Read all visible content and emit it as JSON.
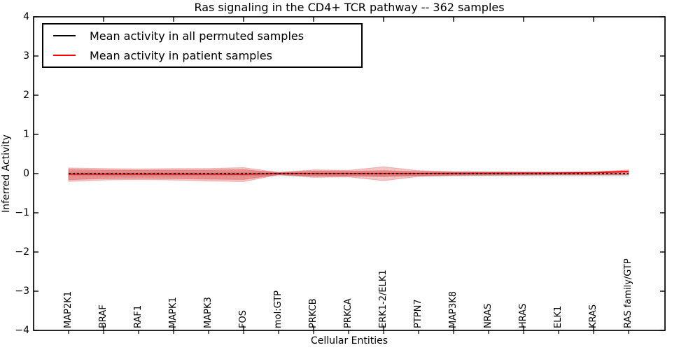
{
  "figure": {
    "background": "#ffffff"
  },
  "chart_data": {
    "type": "line",
    "title": "Ras signaling in the CD4+ TCR pathway -- 362 samples",
    "xlabel": "Cellular Entities",
    "ylabel": "Inferred Activity",
    "ylim": [
      -4,
      4
    ],
    "grid": false,
    "legend_position": "upper left",
    "yticks": {
      "values": [
        4,
        3,
        2,
        1,
        0,
        -1,
        -2,
        -3,
        -4
      ],
      "labels": [
        "4",
        "3",
        "2",
        "1",
        "0",
        "−1",
        "−2",
        "−3",
        "−4"
      ]
    },
    "categories": [
      "MAP2K1",
      "BRAF",
      "RAF1",
      "MAPK1",
      "MAPK3",
      "FOS",
      "mol:GTP",
      "PRKCB",
      "PRKCA",
      "ERK1-2/ELK1",
      "PTPN7",
      "MAP3K8",
      "NRAS",
      "HRAS",
      "ELK1",
      "KRAS",
      "RAS family/GTP"
    ],
    "series": [
      {
        "name": "Mean activity in patient samples",
        "color": "#ff0000",
        "style": "solid",
        "values": [
          -0.012,
          -0.012,
          -0.012,
          -0.012,
          -0.014,
          -0.016,
          0.0,
          -0.002,
          -0.002,
          0.0,
          0.002,
          0.004,
          0.008,
          0.01,
          0.014,
          0.025,
          0.055
        ]
      },
      {
        "name": "Mean activity in all permuted samples",
        "color": "#000000",
        "style": "dashed",
        "values": [
          0,
          0,
          0,
          0,
          0,
          0,
          0,
          0,
          0,
          0,
          0,
          0,
          0,
          0,
          0,
          0,
          0
        ]
      }
    ],
    "bands": [
      {
        "name": "permuted-range-band",
        "color": "#c8c8c8",
        "opacity": 0.55,
        "upper": [
          0.04,
          0.04,
          0.04,
          0.04,
          0.04,
          0.04,
          0.04,
          0.04,
          0.04,
          0.04,
          0.04,
          0.04,
          0.04,
          0.04,
          0.04,
          0.04,
          0.04
        ],
        "lower": [
          -0.06,
          -0.06,
          -0.06,
          -0.06,
          -0.06,
          -0.06,
          -0.06,
          -0.06,
          -0.06,
          -0.06,
          -0.06,
          -0.06,
          -0.06,
          -0.06,
          -0.06,
          -0.06,
          -0.06
        ]
      },
      {
        "name": "patient-outer-band",
        "color": "#d62728",
        "opacity": 0.28,
        "upper": [
          0.145,
          0.13,
          0.12,
          0.13,
          0.13,
          0.155,
          0.03,
          0.095,
          0.085,
          0.175,
          0.075,
          0.05,
          0.045,
          0.04,
          0.038,
          0.045,
          0.095
        ],
        "lower": [
          -0.2,
          -0.165,
          -0.155,
          -0.165,
          -0.19,
          -0.205,
          -0.03,
          -0.095,
          -0.085,
          -0.18,
          -0.075,
          -0.05,
          -0.045,
          -0.04,
          -0.035,
          -0.035,
          -0.03
        ]
      },
      {
        "name": "patient-inner-band",
        "color": "#d62728",
        "opacity": 0.32,
        "upper": [
          0.1,
          0.09,
          0.085,
          0.09,
          0.09,
          0.1,
          0.02,
          0.065,
          0.06,
          0.075,
          0.05,
          0.035,
          0.03,
          0.028,
          0.026,
          0.032,
          0.07
        ],
        "lower": [
          -0.155,
          -0.125,
          -0.115,
          -0.125,
          -0.14,
          -0.15,
          -0.02,
          -0.065,
          -0.06,
          -0.075,
          -0.05,
          -0.035,
          -0.03,
          -0.028,
          -0.025,
          -0.025,
          -0.02
        ]
      }
    ]
  },
  "legend": {
    "entries": [
      {
        "label": "Mean activity in all permuted samples",
        "color": "#000000"
      },
      {
        "label": "Mean activity in patient samples",
        "color": "#ff0000"
      }
    ]
  }
}
